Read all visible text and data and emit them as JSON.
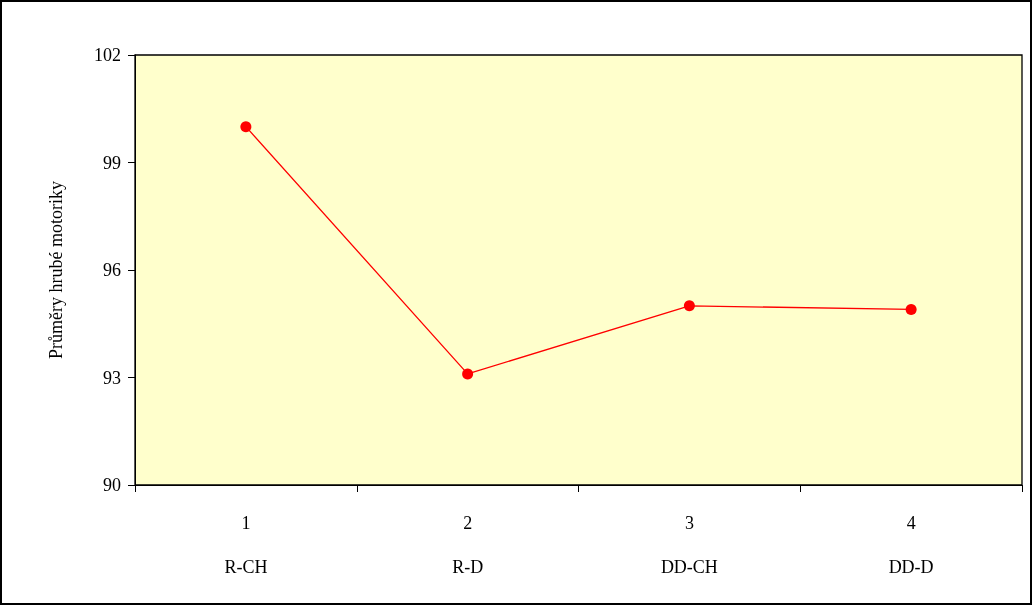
{
  "chart_data": {
    "type": "line",
    "ylabel": "Průměry hrubé motoriky",
    "categories": [
      "1\nR-CH",
      "2\nR-D",
      "3\nDD-CH",
      "4\nDD-D"
    ],
    "series": [
      {
        "color": "#ff0000",
        "values": [
          100.0,
          93.1,
          95.0,
          94.9
        ]
      }
    ],
    "ylim": [
      90,
      102
    ],
    "yticks": [
      90,
      93,
      96,
      99,
      102
    ],
    "grid": false,
    "marker": "circle",
    "line_style": "solid"
  }
}
